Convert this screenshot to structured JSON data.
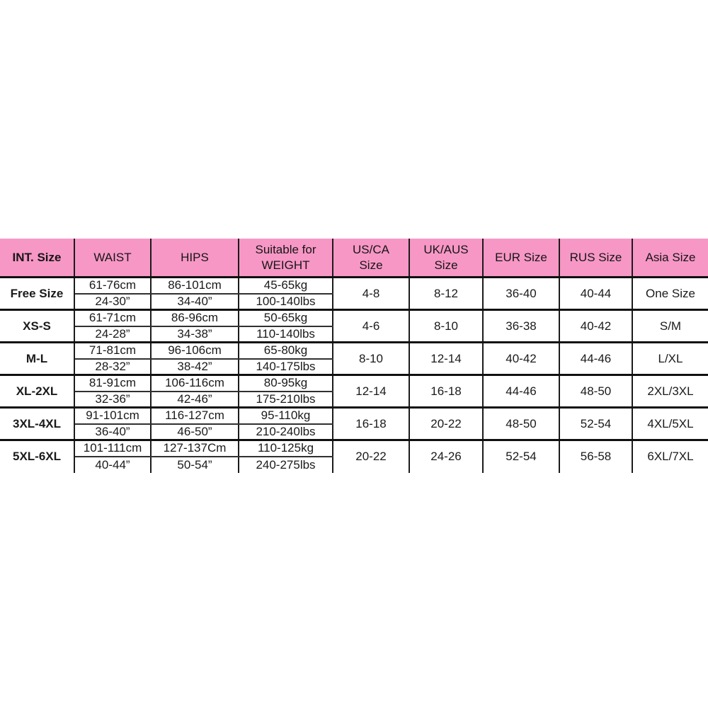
{
  "table": {
    "headers": [
      {
        "label": "INT. Size"
      },
      {
        "label": "WAIST"
      },
      {
        "label": "HIPS"
      },
      {
        "label": "Suitable for\nWEIGHT"
      },
      {
        "label": "US/CA\nSize"
      },
      {
        "label": "UK/AUS\nSize"
      },
      {
        "label": "EUR Size"
      },
      {
        "label": "RUS Size"
      },
      {
        "label": "Asia Size"
      }
    ],
    "rows": [
      {
        "int_size": "Free Size",
        "waist_cm": "61-76cm",
        "waist_in": "24-30”",
        "hips_cm": "86-101cm",
        "hips_in": "34-40”",
        "weight_kg": "45-65kg",
        "weight_lbs": "100-140lbs",
        "us_ca": "4-8",
        "uk_aus": "8-12",
        "eur": "36-40",
        "rus": "40-44",
        "asia": "One Size"
      },
      {
        "int_size": "XS-S",
        "waist_cm": "61-71cm",
        "waist_in": "24-28”",
        "hips_cm": "86-96cm",
        "hips_in": "34-38”",
        "weight_kg": "50-65kg",
        "weight_lbs": "110-140lbs",
        "us_ca": "4-6",
        "uk_aus": "8-10",
        "eur": "36-38",
        "rus": "40-42",
        "asia": "S/M"
      },
      {
        "int_size": "M-L",
        "waist_cm": "71-81cm",
        "waist_in": "28-32”",
        "hips_cm": "96-106cm",
        "hips_in": "38-42”",
        "weight_kg": "65-80kg",
        "weight_lbs": "140-175lbs",
        "us_ca": "8-10",
        "uk_aus": "12-14",
        "eur": "40-42",
        "rus": "44-46",
        "asia": "L/XL"
      },
      {
        "int_size": "XL-2XL",
        "waist_cm": "81-91cm",
        "waist_in": "32-36”",
        "hips_cm": "106-116cm",
        "hips_in": "42-46”",
        "weight_kg": "80-95kg",
        "weight_lbs": "175-210lbs",
        "us_ca": "12-14",
        "uk_aus": "16-18",
        "eur": "44-46",
        "rus": "48-50",
        "asia": "2XL/3XL"
      },
      {
        "int_size": "3XL-4XL",
        "waist_cm": "91-101cm",
        "waist_in": "36-40”",
        "hips_cm": "116-127cm",
        "hips_in": "46-50”",
        "weight_kg": "95-110kg",
        "weight_lbs": "210-240lbs",
        "us_ca": "16-18",
        "uk_aus": "20-22",
        "eur": "48-50",
        "rus": "52-54",
        "asia": "4XL/5XL"
      },
      {
        "int_size": "5XL-6XL",
        "waist_cm": "101-111cm",
        "waist_in": "40-44”",
        "hips_cm": "127-137Cm",
        "hips_in": "50-54”",
        "weight_kg": "110-125kg",
        "weight_lbs": "240-275lbs",
        "us_ca": "20-22",
        "uk_aus": "24-26",
        "eur": "52-54",
        "rus": "56-58",
        "asia": "6XL/7XL"
      }
    ],
    "colors": {
      "header_bg": "#F797C5",
      "text": "#1a1a1a",
      "border": "#1b1b1b"
    }
  },
  "chart_data": {
    "type": "table",
    "columns": [
      "INT. Size",
      "WAIST",
      "HIPS",
      "Suitable for WEIGHT",
      "US/CA Size",
      "UK/AUS Size",
      "EUR Size",
      "RUS Size",
      "Asia Size"
    ],
    "rows": [
      [
        "Free Size",
        "61-76cm / 24-30”",
        "86-101cm / 34-40”",
        "45-65kg / 100-140lbs",
        "4-8",
        "8-12",
        "36-40",
        "40-44",
        "One Size"
      ],
      [
        "XS-S",
        "61-71cm / 24-28”",
        "86-96cm / 34-38”",
        "50-65kg / 110-140lbs",
        "4-6",
        "8-10",
        "36-38",
        "40-42",
        "S/M"
      ],
      [
        "M-L",
        "71-81cm / 28-32”",
        "96-106cm / 38-42”",
        "65-80kg / 140-175lbs",
        "8-10",
        "12-14",
        "40-42",
        "44-46",
        "L/XL"
      ],
      [
        "XL-2XL",
        "81-91cm / 32-36”",
        "106-116cm / 42-46”",
        "80-95kg / 175-210lbs",
        "12-14",
        "16-18",
        "44-46",
        "48-50",
        "2XL/3XL"
      ],
      [
        "3XL-4XL",
        "91-101cm / 36-40”",
        "116-127cm / 46-50”",
        "95-110kg / 210-240lbs",
        "16-18",
        "20-22",
        "48-50",
        "52-54",
        "4XL/5XL"
      ],
      [
        "5XL-6XL",
        "101-111cm / 40-44”",
        "127-137Cm / 50-54”",
        "110-125kg / 240-275lbs",
        "20-22",
        "24-26",
        "52-54",
        "56-58",
        "6XL/7XL"
      ]
    ]
  }
}
